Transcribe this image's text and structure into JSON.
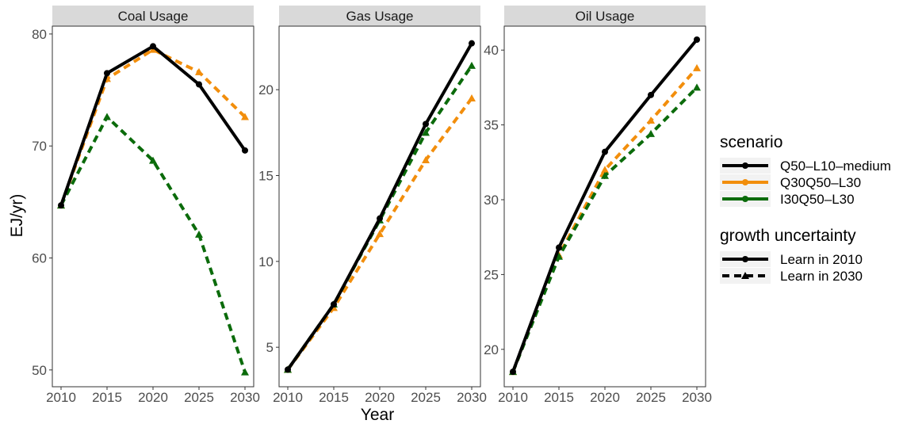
{
  "chart_data": {
    "type": "line",
    "xlabel": "Year",
    "ylabel": "EJ/yr)",
    "x": [
      2010,
      2015,
      2020,
      2025,
      2030
    ],
    "x_ticks": [
      "2010",
      "2015",
      "2020",
      "2025",
      "2030"
    ],
    "grid": false,
    "legend_position": "right",
    "colors": {
      "Q50-L10-medium": "#000000",
      "Q30Q50-L30": "#f28e0c",
      "I30Q50-L30": "#0b6b0b"
    },
    "legend": {
      "scenario_title": "scenario",
      "scenario_entries": [
        "Q50–L10–medium",
        "Q30Q50–L30",
        "I30Q50–L30"
      ],
      "uncertainty_title": "growth uncertainty",
      "uncertainty_entries": [
        "Learn in 2010",
        "Learn in 2030"
      ]
    },
    "panels": [
      {
        "title": "Coal Usage",
        "ylim": [
          48.5,
          80.7
        ],
        "yticks": [
          50,
          60,
          70,
          80
        ],
        "ytick_labels": [
          "50",
          "60",
          "70",
          "80"
        ],
        "series": [
          {
            "scenario": "Q50-L10-medium",
            "uncertainty": "Learn in 2010",
            "values": [
              64.7,
              76.5,
              78.9,
              75.5,
              69.6
            ]
          },
          {
            "scenario": "Q30Q50-L30",
            "uncertainty": "Learn in 2030",
            "values": [
              64.7,
              76.0,
              78.6,
              76.6,
              72.6
            ]
          },
          {
            "scenario": "I30Q50-L30",
            "uncertainty": "Learn in 2030",
            "values": [
              64.7,
              72.6,
              68.7,
              62.1,
              49.8
            ]
          }
        ]
      },
      {
        "title": "Gas Usage",
        "ylim": [
          2.7,
          23.7
        ],
        "yticks": [
          5,
          10,
          15,
          20
        ],
        "ytick_labels": [
          "5",
          "10",
          "15",
          "20"
        ],
        "series": [
          {
            "scenario": "Q50-L10-medium",
            "uncertainty": "Learn in 2010",
            "values": [
              3.7,
              7.5,
              12.5,
              18.0,
              22.7
            ]
          },
          {
            "scenario": "Q30Q50-L30",
            "uncertainty": "Learn in 2030",
            "values": [
              3.7,
              7.3,
              11.6,
              15.9,
              19.5
            ]
          },
          {
            "scenario": "I30Q50-L30",
            "uncertainty": "Learn in 2030",
            "values": [
              3.7,
              7.5,
              12.4,
              17.5,
              21.4
            ]
          }
        ]
      },
      {
        "title": "Oil Usage",
        "ylim": [
          17.5,
          41.6
        ],
        "yticks": [
          20,
          25,
          30,
          35,
          40
        ],
        "ytick_labels": [
          "20",
          "25",
          "30",
          "35",
          "40"
        ],
        "series": [
          {
            "scenario": "Q50-L10-medium",
            "uncertainty": "Learn in 2010",
            "values": [
              18.5,
              26.8,
              33.2,
              37.0,
              40.7
            ]
          },
          {
            "scenario": "Q30Q50-L30",
            "uncertainty": "Learn in 2030",
            "values": [
              18.5,
              26.3,
              32.0,
              35.3,
              38.8
            ]
          },
          {
            "scenario": "I30Q50-L30",
            "uncertainty": "Learn in 2030",
            "values": [
              18.5,
              26.2,
              31.6,
              34.4,
              37.5
            ]
          }
        ]
      }
    ]
  }
}
